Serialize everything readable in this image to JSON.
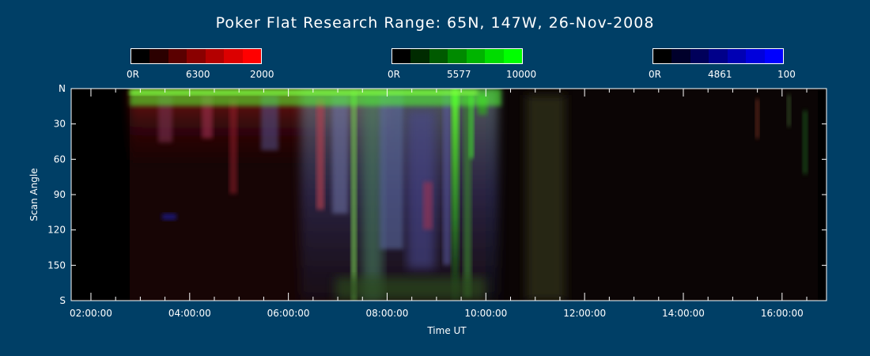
{
  "chart_data": {
    "type": "heatmap",
    "title": "Poker Flat Research Range: 65N, 147W, 26-Nov-2008",
    "xlabel": "Time UT",
    "ylabel": "Scan Angle",
    "x_ticks": [
      "02:00:00",
      "04:00:00",
      "06:00:00",
      "08:00:00",
      "10:00:00",
      "12:00:00",
      "14:00:00",
      "16:00:00"
    ],
    "x_range_hours": [
      1.6,
      16.9
    ],
    "y_ticks": [
      "N",
      "30",
      "60",
      "90",
      "120",
      "150",
      "S"
    ],
    "y_range": [
      0,
      180
    ],
    "colorbars": [
      {
        "channel": "red",
        "wavelength": "6300",
        "min_label": "0R",
        "max_label": "2000",
        "colors": [
          "#000000",
          "#2b0000",
          "#5a0000",
          "#8a0000",
          "#b40000",
          "#dc0000",
          "#ff0000"
        ]
      },
      {
        "channel": "green",
        "wavelength": "5577",
        "min_label": "0R",
        "max_label": "10000",
        "colors": [
          "#000000",
          "#002b00",
          "#005a00",
          "#008a00",
          "#00b400",
          "#00dc00",
          "#00ff00"
        ]
      },
      {
        "channel": "blue",
        "wavelength": "4861",
        "min_label": "0R",
        "max_label": "100",
        "colors": [
          "#000000",
          "#00002b",
          "#00005a",
          "#00008a",
          "#0000b4",
          "#0000dc",
          "#0000ff"
        ]
      }
    ],
    "data_start_hour": 2.5
  }
}
